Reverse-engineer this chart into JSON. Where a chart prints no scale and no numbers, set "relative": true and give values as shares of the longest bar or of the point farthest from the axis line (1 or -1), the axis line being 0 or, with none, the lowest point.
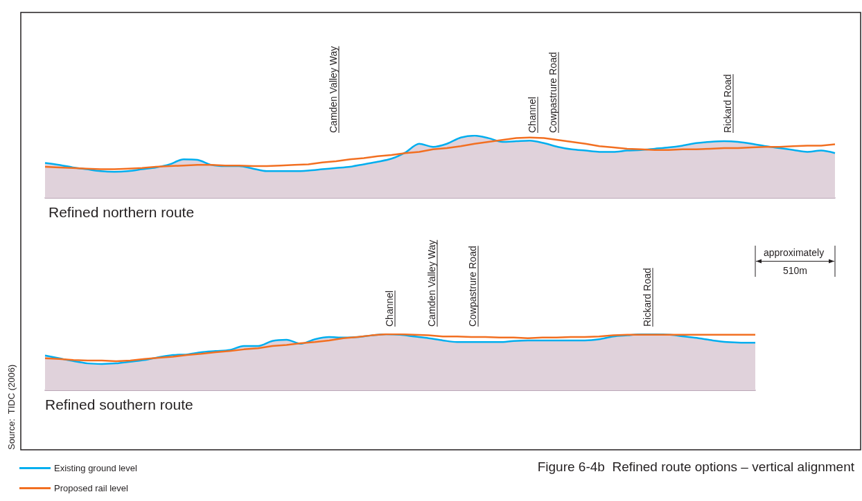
{
  "chart_data": [
    {
      "type": "area",
      "relative": true,
      "title": "Figure 6-4b  Refined route options – vertical alignment",
      "xlabel": "Refined northern route",
      "legend": "bottom left",
      "annotations": [
        "Camden Valley Way",
        "Channel",
        "Cowpastrure Road",
        "Rickard Road"
      ],
      "categories": [
        null,
        null,
        null,
        null,
        null,
        null,
        null,
        null,
        null,
        null,
        null,
        null,
        null,
        null,
        null,
        null,
        null,
        null,
        null,
        null,
        null,
        null,
        null,
        null,
        null,
        null,
        null,
        null,
        null,
        null,
        null,
        null,
        null,
        null,
        null,
        null,
        null,
        null,
        null,
        null,
        null,
        null,
        null,
        null,
        null,
        null,
        null,
        null,
        null,
        null,
        null,
        null,
        null,
        null,
        null,
        null,
        null,
        null
      ],
      "series": [
        {
          "name": "Existing ground level",
          "type": "area",
          "color": "#00aeef",
          "values": [
            0.56,
            0.53,
            0.49,
            0.46,
            0.43,
            0.42,
            0.43,
            0.46,
            0.49,
            0.54,
            0.62,
            0.61,
            0.53,
            0.51,
            0.51,
            0.47,
            0.43,
            0.43,
            0.43,
            0.44,
            0.46,
            0.48,
            0.5,
            0.54,
            0.58,
            0.63,
            0.73,
            0.87,
            0.82,
            0.87,
            0.97,
            1,
            0.96,
            0.9,
            0.91,
            0.92,
            0.88,
            0.82,
            0.78,
            0.76,
            0.74,
            0.74,
            0.76,
            0.77,
            0.79,
            0.81,
            0.84,
            0.88,
            0.9,
            0.91,
            0.9,
            0.87,
            0.83,
            0.8,
            0.77,
            0.74,
            0.76,
            0.72
          ]
        },
        {
          "name": "Proposed rail level",
          "type": "line",
          "color": "#f26f21",
          "values": [
            0.5,
            0.49,
            0.48,
            0.47,
            0.46,
            0.46,
            0.47,
            0.48,
            0.5,
            0.51,
            0.52,
            0.53,
            0.53,
            0.52,
            0.52,
            0.51,
            0.51,
            0.52,
            0.53,
            0.54,
            0.57,
            0.59,
            0.62,
            0.64,
            0.67,
            0.69,
            0.72,
            0.74,
            0.78,
            0.8,
            0.83,
            0.87,
            0.9,
            0.93,
            0.96,
            0.97,
            0.96,
            0.93,
            0.9,
            0.87,
            0.83,
            0.81,
            0.79,
            0.78,
            0.77,
            0.77,
            0.78,
            0.78,
            0.79,
            0.8,
            0.8,
            0.81,
            0.82,
            0.82,
            0.83,
            0.84,
            0.84,
            0.86
          ]
        }
      ]
    },
    {
      "type": "area",
      "relative": true,
      "xlabel": "Refined southern route",
      "annotations": [
        "Channel",
        "Camden Valley Way",
        "Cowpastrure Road",
        "Rickard Road",
        "approximately 510m",
        "Source:  TIDC (2006)"
      ],
      "categories": [
        null,
        null,
        null,
        null,
        null,
        null,
        null,
        null,
        null,
        null,
        null,
        null,
        null,
        null,
        null,
        null,
        null,
        null,
        null,
        null,
        null,
        null,
        null,
        null,
        null,
        null,
        null,
        null,
        null,
        null,
        null,
        null,
        null,
        null,
        null,
        null,
        null,
        null,
        null,
        null,
        null,
        null,
        null,
        null,
        null,
        null,
        null,
        null,
        null,
        null,
        null
      ],
      "series": [
        {
          "type": "area",
          "color": "#00aeef",
          "values": [
            0.62,
            0.57,
            0.52,
            0.48,
            0.47,
            0.48,
            0.51,
            0.54,
            0.59,
            0.63,
            0.64,
            0.68,
            0.7,
            0.72,
            0.79,
            0.79,
            0.88,
            0.9,
            0.83,
            0.91,
            0.95,
            0.94,
            0.95,
            0.98,
            1,
            0.99,
            0.96,
            0.93,
            0.89,
            0.86,
            0.86,
            0.86,
            0.86,
            0.88,
            0.89,
            0.89,
            0.89,
            0.89,
            0.89,
            0.91,
            0.96,
            0.98,
            1,
            1,
            0.99,
            0.96,
            0.93,
            0.89,
            0.86,
            0.85,
            0.85
          ]
        },
        {
          "type": "line",
          "color": "#f26f21",
          "values": [
            0.57,
            0.56,
            0.54,
            0.53,
            0.53,
            0.52,
            0.53,
            0.56,
            0.58,
            0.6,
            0.63,
            0.65,
            0.68,
            0.7,
            0.73,
            0.75,
            0.79,
            0.81,
            0.84,
            0.86,
            0.89,
            0.93,
            0.95,
            0.98,
            1,
            1,
            0.99,
            0.98,
            0.96,
            0.96,
            0.95,
            0.95,
            0.94,
            0.94,
            0.93,
            0.94,
            0.94,
            0.95,
            0.95,
            0.96,
            0.98,
            0.99,
            0.99,
            0.99,
            0.99,
            0.99,
            0.99,
            0.99,
            0.99,
            0.99,
            0.99
          ]
        }
      ]
    }
  ]
}
